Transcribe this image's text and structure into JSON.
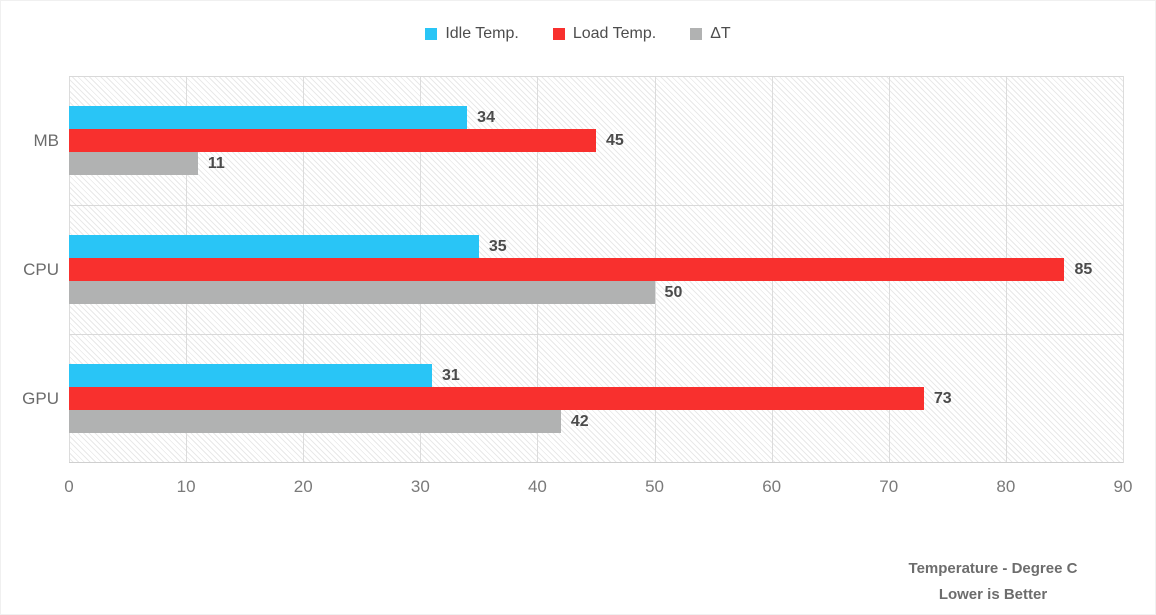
{
  "chart_data": {
    "type": "bar",
    "orientation": "horizontal",
    "title": "",
    "categories": [
      "MB",
      "CPU",
      "GPU"
    ],
    "series": [
      {
        "name": "Idle Temp.",
        "color": "#29C5F6",
        "values": [
          34,
          35,
          31
        ]
      },
      {
        "name": "Load Temp.",
        "color": "#F8302E",
        "values": [
          45,
          85,
          73
        ]
      },
      {
        "name": "ΔT",
        "color": "#B1B2B2",
        "values": [
          11,
          50,
          42
        ]
      }
    ],
    "xlim": [
      0,
      90
    ],
    "xticks": [
      0,
      10,
      20,
      30,
      40,
      50,
      60,
      70,
      80,
      90
    ],
    "grid": true,
    "grid_hatch": "diagonal",
    "legend_position": "top-center",
    "value_labels": true,
    "footer": [
      "Temperature - Degree C",
      "Lower is Better"
    ]
  },
  "colors": {
    "idle": "#29C5F6",
    "load": "#F8302E",
    "delta": "#B1B2B2",
    "gridline": "#dcdcdc",
    "value_text": "#4b4b4b",
    "axis_text": "#7a7a7a",
    "footer_text": "#6d6d6d"
  }
}
